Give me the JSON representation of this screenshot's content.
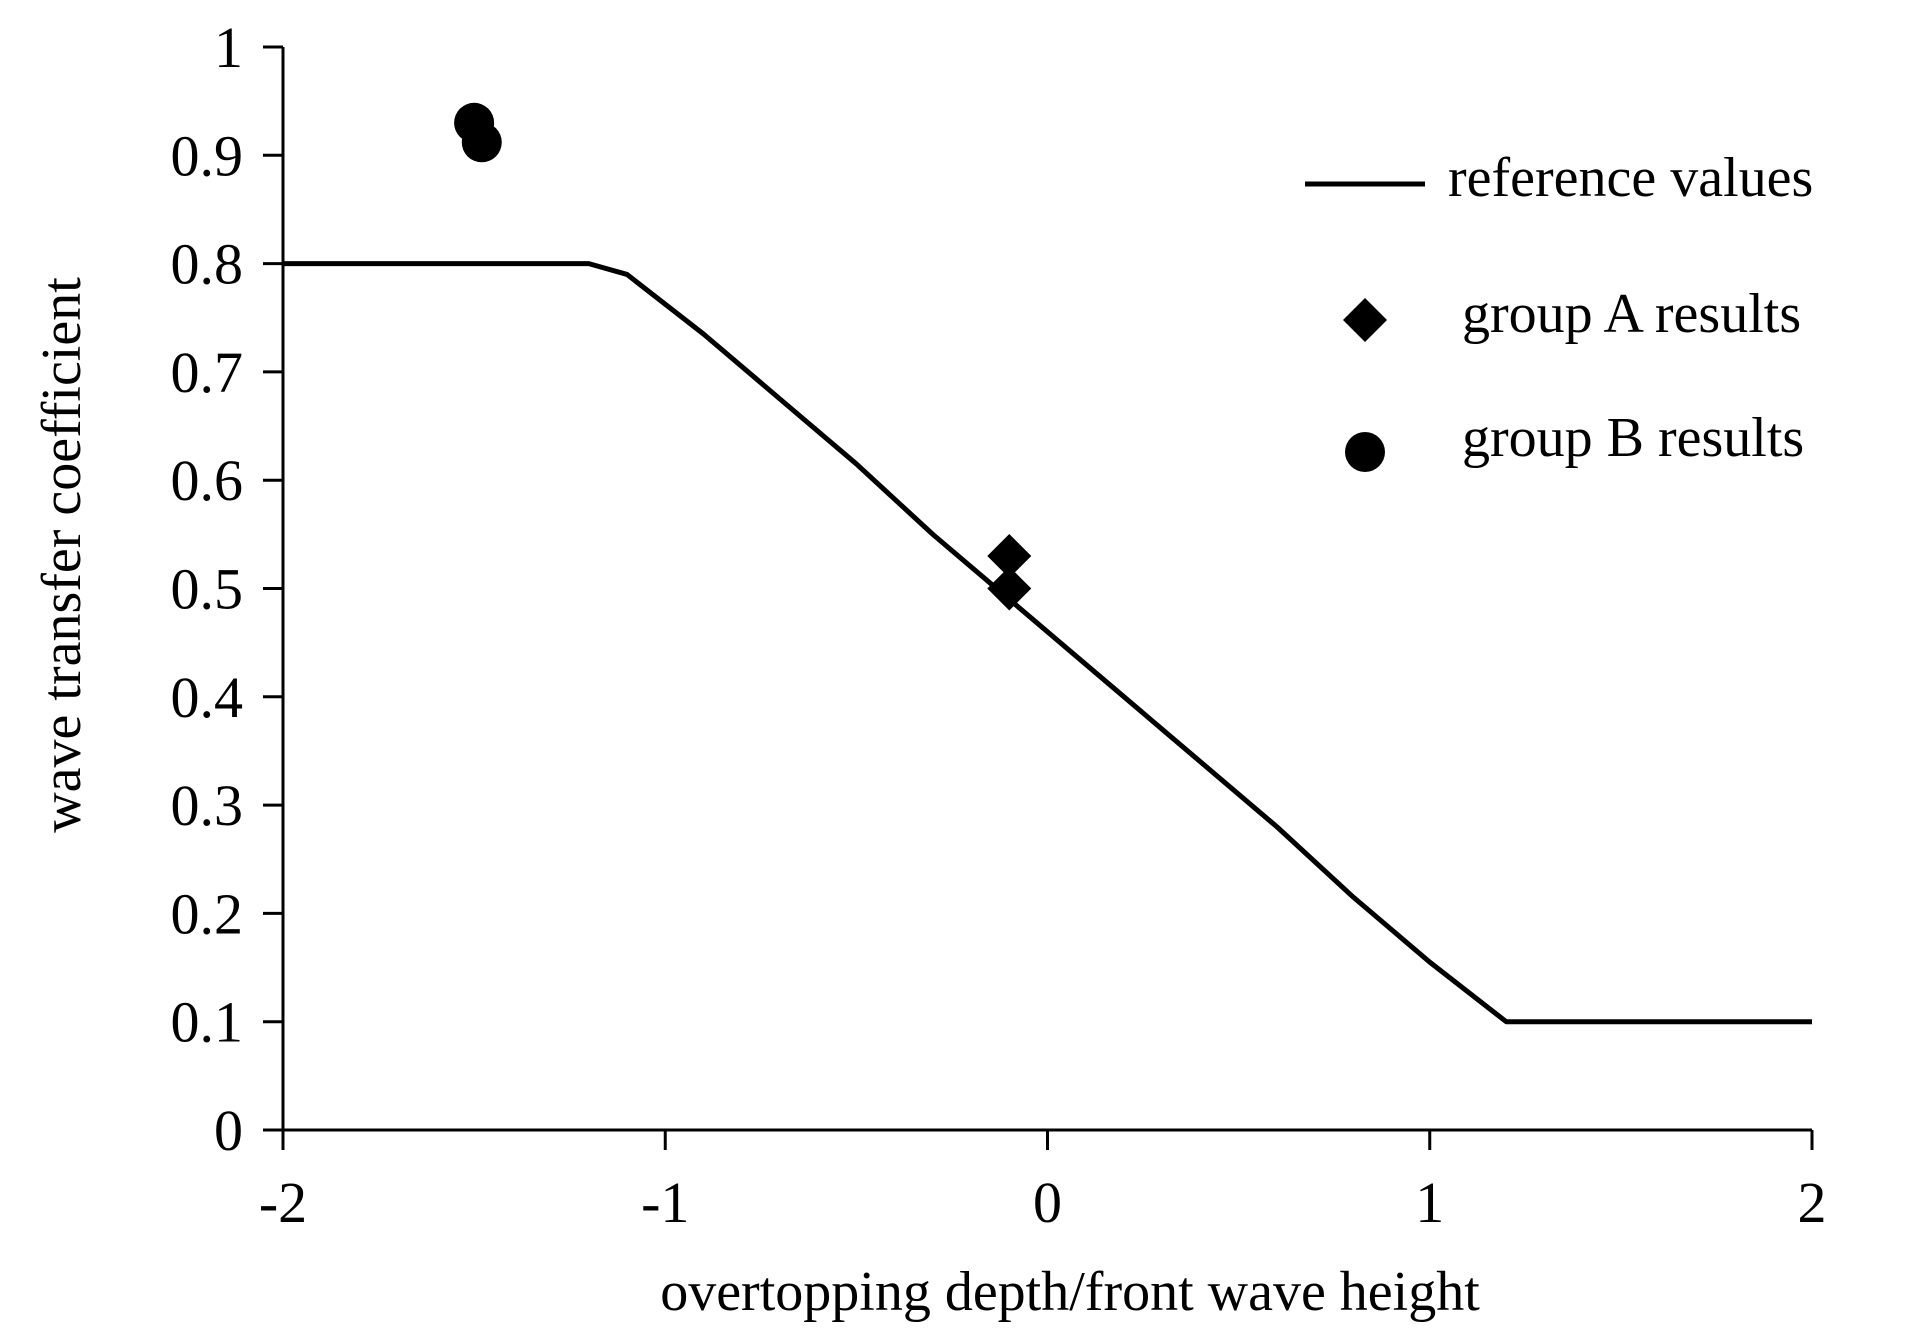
{
  "chart_data": {
    "type": "line",
    "title": "",
    "xlabel": "overtopping depth/front wave height",
    "ylabel": "wave transfer coefficient",
    "xlim": [
      -2,
      2
    ],
    "ylim": [
      0,
      1
    ],
    "x_ticks": [
      {
        "value": -2,
        "label": "-2"
      },
      {
        "value": -1,
        "label": "-1"
      },
      {
        "value": 0,
        "label": "0"
      },
      {
        "value": 1,
        "label": "1"
      },
      {
        "value": 2,
        "label": "2"
      }
    ],
    "y_ticks": [
      {
        "value": 0,
        "label": "0"
      },
      {
        "value": 0.1,
        "label": "0.1"
      },
      {
        "value": 0.2,
        "label": "0.2"
      },
      {
        "value": 0.3,
        "label": "0.3"
      },
      {
        "value": 0.4,
        "label": "0.4"
      },
      {
        "value": 0.5,
        "label": "0.5"
      },
      {
        "value": 0.6,
        "label": "0.6"
      },
      {
        "value": 0.7,
        "label": "0.7"
      },
      {
        "value": 0.8,
        "label": "0.8"
      },
      {
        "value": 0.9,
        "label": "0.9"
      },
      {
        "value": 1,
        "label": "1"
      }
    ],
    "grid": false,
    "legend_position": "top-right",
    "series": [
      {
        "name": "reference values",
        "kind": "line",
        "color": "#000000",
        "points": [
          [
            -2,
            0.8
          ],
          [
            -1.2,
            0.8
          ],
          [
            -1.1,
            0.79
          ],
          [
            -0.9,
            0.735
          ],
          [
            -0.7,
            0.675
          ],
          [
            -0.5,
            0.615
          ],
          [
            -0.3,
            0.55
          ],
          [
            -0.1,
            0.49
          ],
          [
            0.1,
            0.43
          ],
          [
            0.3,
            0.37
          ],
          [
            0.6,
            0.28
          ],
          [
            0.8,
            0.215
          ],
          [
            1.0,
            0.155
          ],
          [
            1.2,
            0.1
          ],
          [
            2,
            0.1
          ]
        ]
      },
      {
        "name": "group A results",
        "kind": "scatter",
        "marker": "diamond",
        "color": "#000000",
        "points": [
          [
            -0.1,
            0.53
          ],
          [
            -0.1,
            0.5
          ]
        ]
      },
      {
        "name": "group B results",
        "kind": "scatter",
        "marker": "circle",
        "color": "#000000",
        "points": [
          [
            -1.5,
            0.93
          ],
          [
            -1.48,
            0.912
          ]
        ]
      }
    ]
  }
}
